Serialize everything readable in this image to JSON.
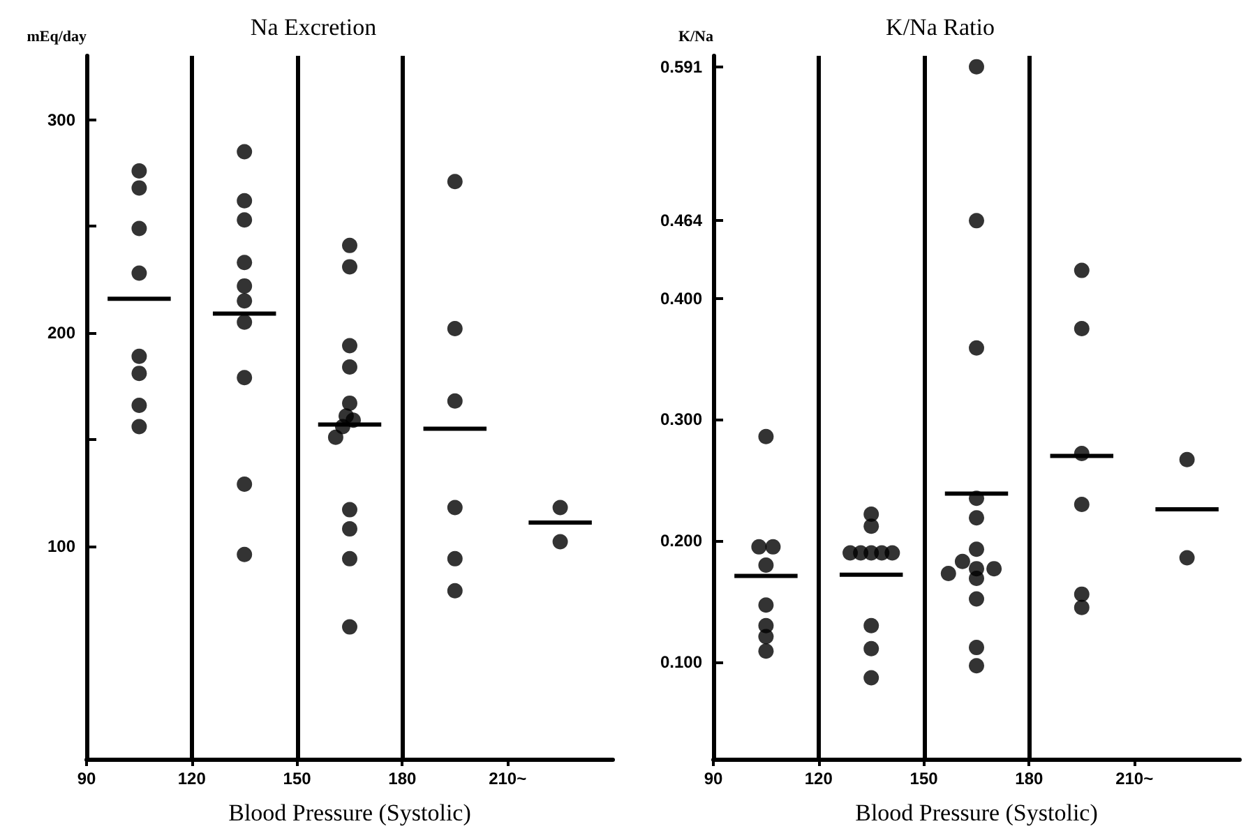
{
  "chart_data": [
    {
      "type": "scatter",
      "title": "Na Excretion",
      "xlabel": "Blood Pressure (Systolic)",
      "ylabel": "mEq/day",
      "xlim": [
        90,
        240
      ],
      "xticks": [
        90,
        120,
        150,
        180,
        {
          "value": 210,
          "label": "210~"
        }
      ],
      "ylim": [
        0,
        330
      ],
      "yticks": [
        100,
        {
          "value": 150,
          "label": null
        },
        200,
        {
          "value": 250,
          "label": null
        },
        300
      ],
      "grid": "x",
      "series": [
        {
          "type": "scatter",
          "color": "#000000",
          "marker": "circle",
          "x": [
            105,
            105,
            105,
            105,
            105,
            105,
            105,
            105,
            135,
            135,
            135,
            135,
            135,
            135,
            135,
            135,
            135,
            135,
            165,
            165,
            165,
            165,
            165,
            164,
            166,
            163,
            161,
            165,
            165,
            165,
            165,
            195,
            195,
            195,
            195,
            195,
            195,
            225,
            225
          ],
          "values": [
            276,
            268,
            249,
            228,
            189,
            181,
            166,
            156,
            285,
            262,
            253,
            233,
            222,
            215,
            205,
            179,
            129,
            96,
            241,
            231,
            194,
            184,
            167,
            161,
            159,
            156,
            151,
            117,
            108,
            94,
            62,
            271,
            202,
            168,
            118,
            94,
            79,
            118,
            102
          ]
        },
        {
          "type": "line",
          "color": "#000000",
          "marker": "none",
          "line_style": "solid",
          "x": [
            96,
            114,
            120,
            126,
            144,
            150,
            156,
            174,
            180,
            186,
            204,
            210,
            216,
            234
          ],
          "values": [
            216,
            216,
            null,
            209,
            209,
            null,
            157,
            157,
            null,
            155,
            155,
            null,
            111,
            111
          ]
        }
      ]
    },
    {
      "type": "scatter",
      "title": "K/Na Ratio",
      "xlabel": "Blood Pressure (Systolic)",
      "ylabel": "K/Na",
      "xlim": [
        90,
        240
      ],
      "xticks": [
        90,
        120,
        150,
        180,
        {
          "value": 210,
          "label": "210~"
        }
      ],
      "ylim": [
        0.02,
        0.6
      ],
      "yticks": [
        {
          "value": 0.1,
          "label": "0.100"
        },
        {
          "value": 0.2,
          "label": "0.200"
        },
        {
          "value": 0.3,
          "label": "0.300"
        },
        {
          "value": 0.4,
          "label": "0.400"
        },
        0.464,
        0.591
      ],
      "grid": "x",
      "series": [
        {
          "type": "scatter",
          "color": "#000000",
          "marker": "circle",
          "x": [
            105,
            103,
            107,
            105,
            105,
            105,
            105,
            105,
            135,
            135,
            129,
            132,
            135,
            138,
            141,
            135,
            135,
            135,
            165,
            165,
            165,
            165,
            165,
            165,
            161,
            170,
            157,
            165,
            165,
            165,
            165,
            165,
            195,
            195,
            195,
            195,
            195,
            195,
            225,
            225
          ],
          "values": [
            0.286,
            0.195,
            0.195,
            0.18,
            0.147,
            0.13,
            0.121,
            0.109,
            0.222,
            0.212,
            0.19,
            0.19,
            0.19,
            0.19,
            0.19,
            0.13,
            0.111,
            0.087,
            0.591,
            0.464,
            0.359,
            0.235,
            0.219,
            0.193,
            0.183,
            0.177,
            0.173,
            0.177,
            0.169,
            0.152,
            0.112,
            0.097,
            0.423,
            0.375,
            0.272,
            0.23,
            0.156,
            0.145,
            0.267,
            0.186
          ]
        },
        {
          "type": "line",
          "color": "#000000",
          "marker": "none",
          "line_style": "solid",
          "x": [
            96,
            114,
            120,
            126,
            144,
            150,
            156,
            174,
            180,
            186,
            204,
            210,
            216,
            234
          ],
          "values": [
            0.171,
            0.171,
            null,
            0.172,
            0.172,
            null,
            0.239,
            0.239,
            null,
            0.27,
            0.27,
            null,
            0.226,
            0.226
          ]
        }
      ]
    }
  ]
}
